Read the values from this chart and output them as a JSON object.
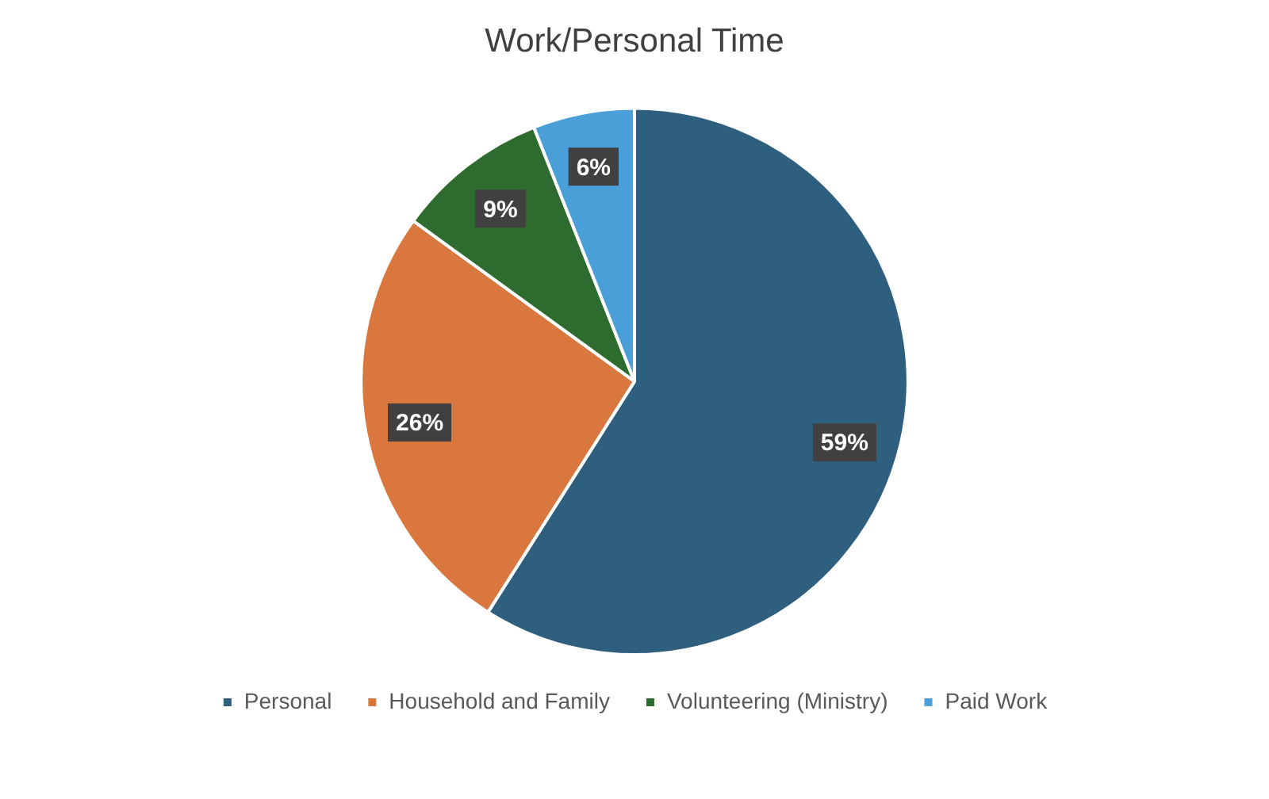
{
  "chart_data": {
    "type": "pie",
    "title": "Work/Personal Time",
    "categories": [
      "Personal",
      "Household and Family",
      "Volunteering (Ministry)",
      "Paid Work"
    ],
    "values": [
      59,
      26,
      9,
      6
    ],
    "colors": [
      "#2e5f7f",
      "#d9773f",
      "#2e6b2e",
      "#4a9fd8"
    ],
    "value_labels": [
      "59%",
      "26%",
      "9%",
      "6%"
    ],
    "legend": "bottom"
  }
}
